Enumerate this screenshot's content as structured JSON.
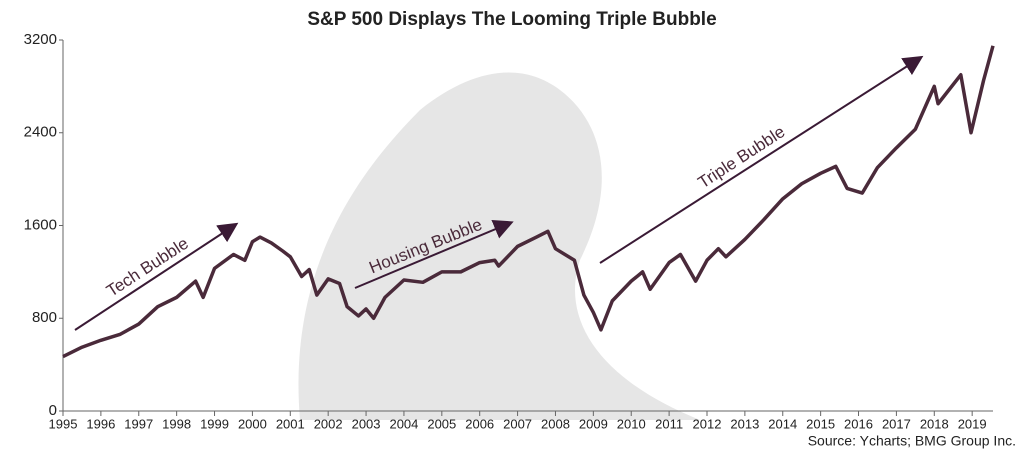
{
  "chart_data": {
    "type": "line",
    "title": "S&P 500 Displays The Looming Triple Bubble",
    "source": "Source: Ycharts; BMG Group Inc.",
    "annotations": [
      "Tech Bubble",
      "Housing Bubble",
      "Triple Bubble"
    ],
    "x": [
      1995.0,
      1995.5,
      1996.0,
      1996.5,
      1997.0,
      1997.5,
      1998.0,
      1998.5,
      1998.7,
      1999.0,
      1999.5,
      1999.8,
      2000.0,
      2000.2,
      2000.5,
      2000.8,
      2001.0,
      2001.3,
      2001.5,
      2001.7,
      2002.0,
      2002.3,
      2002.5,
      2002.8,
      2003.0,
      2003.2,
      2003.5,
      2004.0,
      2004.5,
      2005.0,
      2005.5,
      2006.0,
      2006.4,
      2006.5,
      2007.0,
      2007.5,
      2007.8,
      2008.0,
      2008.5,
      2008.75,
      2009.0,
      2009.2,
      2009.5,
      2010.0,
      2010.3,
      2010.5,
      2011.0,
      2011.3,
      2011.7,
      2012.0,
      2012.3,
      2012.5,
      2013.0,
      2013.5,
      2014.0,
      2014.5,
      2015.0,
      2015.4,
      2015.7,
      2016.1,
      2016.5,
      2017.0,
      2017.5,
      2018.0,
      2018.1,
      2018.7,
      2018.97,
      2019.3,
      2019.55
    ],
    "series": [
      {
        "name": "S&P 500",
        "color": "#4a2a3a",
        "values": [
          470,
          550,
          610,
          660,
          750,
          900,
          980,
          1120,
          980,
          1230,
          1350,
          1300,
          1460,
          1500,
          1450,
          1380,
          1330,
          1160,
          1220,
          1000,
          1140,
          1100,
          900,
          820,
          880,
          800,
          980,
          1130,
          1110,
          1200,
          1200,
          1280,
          1300,
          1250,
          1420,
          1500,
          1550,
          1400,
          1300,
          1000,
          850,
          700,
          950,
          1120,
          1200,
          1050,
          1280,
          1350,
          1120,
          1300,
          1400,
          1330,
          1480,
          1650,
          1830,
          1960,
          2050,
          2110,
          1920,
          1880,
          2100,
          2270,
          2430,
          2800,
          2650,
          2900,
          2400,
          2850,
          3150
        ]
      }
    ],
    "xlim": [
      1995,
      2019.55
    ],
    "xticks": [
      1995,
      1996,
      1997,
      1998,
      1999,
      2000,
      2001,
      2002,
      2003,
      2004,
      2005,
      2006,
      2007,
      2008,
      2009,
      2010,
      2011,
      2012,
      2013,
      2014,
      2015,
      2016,
      2017,
      2018,
      2019
    ],
    "ylim": [
      0,
      3200
    ],
    "yticks": [
      0,
      800,
      1600,
      2400,
      3200
    ],
    "grid": false
  }
}
